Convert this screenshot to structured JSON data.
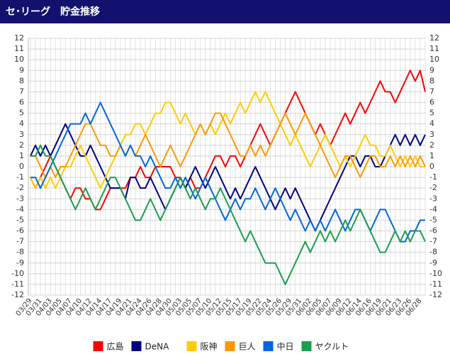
{
  "chart_data": {
    "type": "line",
    "title": "セ･リーグ　貯金推移",
    "categories": [
      "03/29",
      null,
      "03/31",
      null,
      "04/03",
      null,
      "04/05",
      null,
      "04/07",
      null,
      "04/10",
      null,
      "04/12",
      null,
      "04/14",
      null,
      "04/17",
      null,
      "04/19",
      null,
      "04/21",
      null,
      "04/24",
      null,
      "04/26",
      null,
      "04/28",
      null,
      "04/30",
      null,
      "05/03",
      null,
      "05/05",
      null,
      "05/07",
      null,
      "05/10",
      null,
      "05/12",
      null,
      "05/15",
      null,
      "05/17",
      null,
      "05/19",
      null,
      "05/22",
      null,
      "05/24",
      null,
      "05/26",
      null,
      "05/29",
      null,
      "05/31",
      null,
      "06/02",
      null,
      "06/05",
      null,
      "06/07",
      null,
      "06/09",
      null,
      "06/12",
      null,
      "06/14",
      null,
      "06/16",
      null,
      "06/19",
      null,
      "06/21",
      null,
      "06/23",
      null,
      "06/26",
      null,
      "06/28",
      null
    ],
    "series": [
      {
        "name": "広島",
        "color": "#ff0000",
        "values": [
          -1,
          -2,
          -1,
          0,
          1,
          0,
          -1,
          -2,
          -3,
          -2,
          -2,
          -3,
          -3,
          -4,
          -4,
          -3,
          -2,
          -2,
          -2,
          -2,
          -1,
          -1,
          0,
          -1,
          -1,
          0,
          0,
          0,
          0,
          -1,
          -1,
          -2,
          -1,
          -2,
          -2,
          -1,
          0,
          1,
          1,
          0,
          1,
          1,
          0,
          1,
          2,
          3,
          4,
          3,
          2,
          3,
          4,
          5,
          6,
          7,
          6,
          5,
          4,
          3,
          4,
          3,
          2,
          3,
          4,
          5,
          4,
          5,
          6,
          5,
          6,
          7,
          8,
          7,
          7,
          6,
          7,
          8,
          9,
          8,
          9,
          7
        ]
      },
      {
        "name": "DeNA",
        "color": "#000080",
        "values": [
          1,
          2,
          1,
          2,
          1,
          2,
          3,
          4,
          3,
          2,
          1,
          1,
          2,
          1,
          0,
          -1,
          -2,
          -2,
          -2,
          -3,
          -1,
          -1,
          -2,
          -2,
          -1,
          -2,
          -3,
          -4,
          -3,
          -2,
          -1,
          -2,
          -1,
          0,
          -1,
          -2,
          -1,
          0,
          -1,
          -2,
          -3,
          -2,
          -3,
          -2,
          -1,
          0,
          -1,
          -2,
          -3,
          -4,
          -3,
          -2,
          -3,
          -2,
          -3,
          -4,
          -5,
          -6,
          -5,
          -4,
          -3,
          -2,
          -1,
          0,
          1,
          1,
          0,
          1,
          1,
          0,
          0,
          1,
          2,
          3,
          2,
          3,
          2,
          3,
          2,
          3
        ]
      },
      {
        "name": "阪神",
        "color": "#ffcc00",
        "values": [
          -1,
          -2,
          -1,
          -2,
          -1,
          -2,
          -1,
          0,
          0,
          1,
          2,
          1,
          0,
          -1,
          -2,
          -1,
          0,
          1,
          2,
          3,
          3,
          4,
          4,
          3,
          4,
          5,
          5,
          6,
          6,
          5,
          4,
          5,
          4,
          3,
          4,
          3,
          4,
          3,
          4,
          5,
          4,
          5,
          6,
          5,
          6,
          7,
          6,
          7,
          6,
          5,
          4,
          3,
          2,
          3,
          2,
          1,
          0,
          1,
          2,
          3,
          2,
          1,
          0,
          1,
          0,
          1,
          2,
          3,
          2,
          2,
          1,
          1,
          2,
          1,
          0,
          1,
          0,
          1,
          0,
          0
        ]
      },
      {
        "name": "巨人",
        "color": "#ff9900",
        "values": [
          1,
          1,
          0,
          -1,
          0,
          -1,
          0,
          0,
          1,
          2,
          3,
          4,
          4,
          3,
          2,
          2,
          1,
          1,
          2,
          1,
          2,
          1,
          2,
          3,
          2,
          1,
          0,
          1,
          2,
          1,
          0,
          1,
          2,
          3,
          4,
          3,
          4,
          5,
          5,
          4,
          3,
          2,
          1,
          1,
          2,
          1,
          2,
          1,
          2,
          3,
          4,
          5,
          4,
          3,
          4,
          5,
          4,
          3,
          2,
          1,
          0,
          -1,
          0,
          1,
          1,
          0,
          -1,
          0,
          1,
          1,
          0,
          0,
          1,
          0,
          1,
          0,
          1,
          0,
          1,
          0
        ]
      },
      {
        "name": "中日",
        "color": "#0066dd",
        "values": [
          -1,
          -1,
          -2,
          -1,
          0,
          1,
          2,
          3,
          4,
          4,
          4,
          5,
          4,
          5,
          6,
          5,
          4,
          3,
          2,
          1,
          2,
          1,
          1,
          0,
          1,
          0,
          -1,
          -2,
          -2,
          -1,
          -2,
          -1,
          -2,
          -3,
          -2,
          -1,
          -2,
          -3,
          -4,
          -5,
          -4,
          -3,
          -4,
          -3,
          -3,
          -2,
          -3,
          -4,
          -3,
          -2,
          -3,
          -4,
          -5,
          -4,
          -5,
          -6,
          -5,
          -6,
          -5,
          -6,
          -5,
          -4,
          -5,
          -6,
          -5,
          -4,
          -4,
          -5,
          -6,
          -5,
          -4,
          -4,
          -5,
          -6,
          -7,
          -7,
          -6,
          -6,
          -5,
          -5
        ]
      },
      {
        "name": "ヤクルト",
        "color": "#1a9e50",
        "values": [
          1,
          1,
          2,
          1,
          1,
          0,
          -1,
          -2,
          -3,
          -4,
          -3,
          -2,
          -3,
          -4,
          -3,
          -2,
          -1,
          -1,
          -2,
          -3,
          -4,
          -5,
          -5,
          -4,
          -3,
          -4,
          -5,
          -4,
          -3,
          -2,
          -1,
          -2,
          -3,
          -2,
          -3,
          -4,
          -3,
          -3,
          -2,
          -3,
          -4,
          -5,
          -6,
          -7,
          -6,
          -7,
          -8,
          -9,
          -9,
          -9,
          -10,
          -11,
          -10,
          -9,
          -8,
          -7,
          -8,
          -7,
          -6,
          -7,
          -6,
          -7,
          -6,
          -5,
          -6,
          -5,
          -4,
          -5,
          -6,
          -7,
          -8,
          -8,
          -7,
          -6,
          -7,
          -6,
          -7,
          -6,
          -6,
          -7
        ]
      }
    ],
    "ylim": [
      -12,
      12
    ],
    "yticks": [
      -12,
      -11,
      -10,
      -9,
      -8,
      -7,
      -6,
      -5,
      -4,
      -3,
      -2,
      -1,
      0,
      1,
      2,
      3,
      4,
      5,
      6,
      7,
      8,
      9,
      10,
      11,
      12
    ],
    "grid": true
  }
}
